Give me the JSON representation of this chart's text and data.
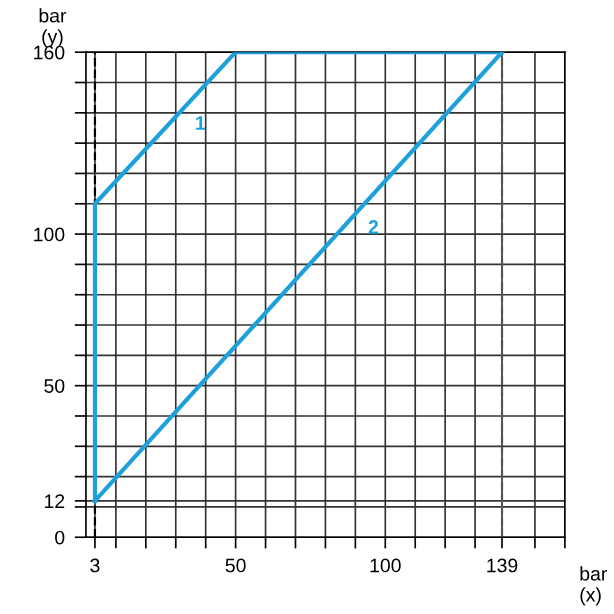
{
  "chart_data": {
    "type": "line",
    "xlabel": "bar\n(x)",
    "ylabel": "bar\n(y)",
    "xlim": [
      0,
      160
    ],
    "ylim": [
      0,
      160
    ],
    "xticks": [
      {
        "value": 3,
        "label": "3"
      },
      {
        "value": 10,
        "label": null
      },
      {
        "value": 20,
        "label": null
      },
      {
        "value": 30,
        "label": null
      },
      {
        "value": 40,
        "label": null
      },
      50,
      {
        "value": 60,
        "label": null
      },
      {
        "value": 70,
        "label": null
      },
      {
        "value": 80,
        "label": null
      },
      {
        "value": 90,
        "label": null
      },
      100,
      {
        "value": 110,
        "label": null
      },
      {
        "value": 120,
        "label": null
      },
      {
        "value": 130,
        "label": null
      },
      139,
      {
        "value": 150,
        "label": null
      },
      {
        "value": 160,
        "label": null
      }
    ],
    "yticks": [
      0,
      {
        "value": 10,
        "label": null
      },
      12,
      {
        "value": 20,
        "label": null
      },
      {
        "value": 30,
        "label": null
      },
      {
        "value": 40,
        "label": null
      },
      50,
      {
        "value": 60,
        "label": null
      },
      {
        "value": 70,
        "label": null
      },
      {
        "value": 80,
        "label": null
      },
      {
        "value": 90,
        "label": null
      },
      100,
      {
        "value": 110,
        "label": null
      },
      {
        "value": 120,
        "label": null
      },
      {
        "value": 130,
        "label": null
      },
      {
        "value": 140,
        "label": null
      },
      {
        "value": 150,
        "label": null
      },
      160
    ],
    "grid": true,
    "series": [
      {
        "name": "1",
        "color": "#1ea0dc",
        "x": [
          3,
          3,
          50,
          139
        ],
        "values": [
          12,
          110,
          160,
          160
        ]
      },
      {
        "name": "2",
        "color": "#1ea0dc",
        "x": [
          3,
          139
        ],
        "values": [
          12,
          160
        ]
      }
    ],
    "ref_lines": [
      {
        "axis": "x",
        "value": 3,
        "color": "#000000",
        "line_style": "dashed"
      },
      {
        "axis": "x",
        "value": 139,
        "color": "#555555",
        "line_style": "dashed"
      }
    ]
  }
}
